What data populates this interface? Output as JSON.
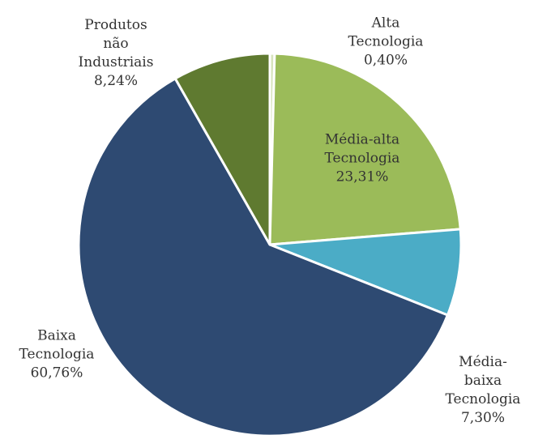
{
  "chart_data": {
    "type": "pie",
    "categories": [
      "Alta Tecnologia",
      "Média-alta Tecnologia",
      "Média-baixa Tecnologia",
      "Baixa Tecnologia",
      "Produtos não Industriais"
    ],
    "values": [
      0.4,
      23.31,
      7.3,
      60.76,
      8.24
    ],
    "value_labels": [
      "0,40%",
      "23,31%",
      "7,30%",
      "60,76%",
      "8,24%"
    ],
    "colors": [
      "#d7e4bd",
      "#9bbb59",
      "#4bacc6",
      "#2e4a72",
      "#5f7a30"
    ]
  }
}
